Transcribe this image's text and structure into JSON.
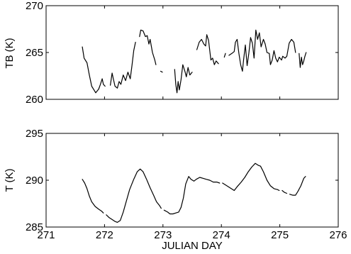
{
  "chart_data": [
    {
      "type": "line",
      "xlabel": "",
      "ylabel": "TB (K)",
      "xlim": [
        271,
        276
      ],
      "ylim": [
        260,
        270
      ],
      "xticks": [
        271,
        272,
        273,
        274,
        275,
        276
      ],
      "yticks": [
        260,
        265,
        270
      ],
      "xtick_labels_shown": false,
      "grid": false,
      "series": [
        {
          "segments": [
            [
              [
                271.62,
                265.6
              ],
              [
                271.65,
                264.4
              ],
              [
                271.7,
                263.9
              ],
              [
                271.74,
                262.6
              ],
              [
                271.78,
                261.4
              ],
              [
                271.82,
                261.0
              ],
              [
                271.85,
                260.7
              ],
              [
                271.9,
                261.1
              ],
              [
                271.93,
                261.6
              ],
              [
                271.96,
                262.2
              ],
              [
                271.98,
                261.6
              ],
              [
                272.01,
                261.4
              ]
            ],
            [
              [
                272.1,
                261.5
              ],
              [
                272.13,
                262.8
              ],
              [
                272.15,
                262.2
              ],
              [
                272.18,
                261.4
              ],
              [
                272.22,
                261.2
              ],
              [
                272.25,
                261.9
              ],
              [
                272.28,
                261.6
              ],
              [
                272.32,
                262.6
              ],
              [
                272.36,
                262.0
              ],
              [
                272.4,
                262.9
              ],
              [
                272.44,
                262.2
              ],
              [
                272.47,
                263.6
              ],
              [
                272.5,
                265.2
              ],
              [
                272.53,
                266.1
              ]
            ],
            [
              [
                272.6,
                266.7
              ],
              [
                272.62,
                267.4
              ],
              [
                272.66,
                267.3
              ],
              [
                272.7,
                266.7
              ],
              [
                272.73,
                266.8
              ],
              [
                272.76,
                265.9
              ],
              [
                272.78,
                266.4
              ],
              [
                272.82,
                265.0
              ],
              [
                272.86,
                264.2
              ],
              [
                272.88,
                263.7
              ]
            ],
            [
              [
                272.96,
                263.0
              ],
              [
                272.99,
                262.9
              ]
            ],
            [
              [
                273.2,
                263.2
              ],
              [
                273.22,
                261.6
              ],
              [
                273.24,
                260.7
              ],
              [
                273.26,
                261.9
              ],
              [
                273.28,
                261.0
              ],
              [
                273.31,
                262.1
              ],
              [
                273.34,
                263.7
              ],
              [
                273.38,
                262.9
              ],
              [
                273.4,
                262.4
              ],
              [
                273.43,
                263.4
              ],
              [
                273.46,
                262.6
              ],
              [
                273.5,
                262.9
              ]
            ],
            [
              [
                273.58,
                265.3
              ],
              [
                273.62,
                266.1
              ],
              [
                273.66,
                266.4
              ],
              [
                273.7,
                265.9
              ],
              [
                273.73,
                265.7
              ],
              [
                273.75,
                266.9
              ],
              [
                273.78,
                266.3
              ],
              [
                273.82,
                264.2
              ],
              [
                273.85,
                264.4
              ],
              [
                273.88,
                263.7
              ],
              [
                273.91,
                264.1
              ],
              [
                273.95,
                263.8
              ]
            ],
            [
              [
                274.05,
                264.5
              ],
              [
                274.07,
                264.9
              ]
            ],
            [
              [
                274.13,
                264.7
              ],
              [
                274.18,
                264.9
              ],
              [
                274.22,
                265.1
              ],
              [
                274.24,
                266.1
              ],
              [
                274.27,
                266.4
              ],
              [
                274.3,
                264.9
              ],
              [
                274.33,
                263.7
              ],
              [
                274.36,
                263.0
              ],
              [
                274.38,
                264.2
              ],
              [
                274.41,
                265.8
              ],
              [
                274.44,
                263.6
              ],
              [
                274.47,
                264.9
              ],
              [
                274.5,
                266.6
              ],
              [
                274.53,
                266.0
              ],
              [
                274.56,
                264.4
              ],
              [
                274.59,
                267.4
              ],
              [
                274.62,
                266.4
              ],
              [
                274.65,
                267.1
              ],
              [
                274.68,
                265.6
              ],
              [
                274.72,
                266.4
              ],
              [
                274.75,
                265.9
              ],
              [
                274.78,
                265.0
              ],
              [
                274.82,
                264.9
              ],
              [
                274.84,
                263.7
              ],
              [
                274.87,
                264.2
              ],
              [
                274.9,
                265.2
              ],
              [
                274.93,
                264.4
              ],
              [
                274.96,
                264.0
              ],
              [
                274.99,
                264.5
              ],
              [
                275.03,
                264.2
              ],
              [
                275.05,
                264.6
              ],
              [
                275.09,
                264.4
              ],
              [
                275.12,
                264.6
              ],
              [
                275.16,
                266.0
              ],
              [
                275.2,
                266.4
              ],
              [
                275.24,
                266.1
              ],
              [
                275.27,
                265.0
              ]
            ],
            [
              [
                275.33,
                264.9
              ],
              [
                275.35,
                263.4
              ],
              [
                275.37,
                264.5
              ],
              [
                275.39,
                263.7
              ],
              [
                275.41,
                264.1
              ],
              [
                275.43,
                264.6
              ],
              [
                275.45,
                265.0
              ]
            ]
          ]
        }
      ]
    },
    {
      "type": "line",
      "xlabel": "JULIAN DAY",
      "ylabel": "T (K)",
      "xlim": [
        271,
        276
      ],
      "ylim": [
        285,
        295
      ],
      "xticks": [
        271,
        272,
        273,
        274,
        275,
        276
      ],
      "yticks": [
        285,
        290,
        295
      ],
      "grid": false,
      "series": [
        {
          "segments": [
            [
              [
                271.62,
                290.1
              ],
              [
                271.66,
                289.7
              ],
              [
                271.7,
                289.1
              ],
              [
                271.74,
                288.3
              ],
              [
                271.78,
                287.7
              ],
              [
                271.84,
                287.2
              ],
              [
                271.9,
                286.9
              ],
              [
                271.95,
                286.7
              ],
              [
                271.98,
                286.5
              ]
            ],
            [
              [
                272.03,
                286.3
              ],
              [
                272.08,
                286.0
              ],
              [
                272.13,
                285.8
              ],
              [
                272.18,
                285.6
              ],
              [
                272.22,
                285.5
              ],
              [
                272.27,
                285.7
              ],
              [
                272.32,
                286.6
              ],
              [
                272.37,
                287.7
              ],
              [
                272.43,
                289.0
              ],
              [
                272.5,
                290.1
              ],
              [
                272.56,
                290.9
              ],
              [
                272.61,
                291.2
              ],
              [
                272.66,
                290.9
              ],
              [
                272.72,
                290.1
              ],
              [
                272.78,
                289.2
              ],
              [
                272.84,
                288.4
              ],
              [
                272.89,
                287.7
              ],
              [
                272.94,
                287.3
              ],
              [
                272.97,
                287.0
              ]
            ],
            [
              [
                273.02,
                286.8
              ],
              [
                273.08,
                286.6
              ],
              [
                273.12,
                286.4
              ],
              [
                273.17,
                286.4
              ],
              [
                273.22,
                286.5
              ],
              [
                273.27,
                286.6
              ],
              [
                273.31,
                287.1
              ],
              [
                273.35,
                288.1
              ],
              [
                273.39,
                289.6
              ],
              [
                273.44,
                290.4
              ],
              [
                273.48,
                290.1
              ],
              [
                273.53,
                289.9
              ],
              [
                273.57,
                290.1
              ],
              [
                273.63,
                290.3
              ],
              [
                273.69,
                290.2
              ],
              [
                273.74,
                290.1
              ],
              [
                273.8,
                290.0
              ],
              [
                273.86,
                289.8
              ],
              [
                273.92,
                289.8
              ],
              [
                273.97,
                289.7
              ]
            ],
            [
              [
                274.02,
                289.7
              ],
              [
                274.07,
                289.5
              ],
              [
                274.12,
                289.3
              ],
              [
                274.17,
                289.1
              ],
              [
                274.22,
                288.9
              ],
              [
                274.27,
                289.3
              ],
              [
                274.34,
                289.8
              ],
              [
                274.4,
                290.3
              ],
              [
                274.46,
                290.9
              ],
              [
                274.52,
                291.4
              ],
              [
                274.58,
                291.8
              ],
              [
                274.63,
                291.6
              ],
              [
                274.67,
                291.5
              ],
              [
                274.72,
                290.9
              ],
              [
                274.78,
                290.0
              ],
              [
                274.84,
                289.4
              ],
              [
                274.9,
                289.1
              ],
              [
                274.96,
                289.0
              ],
              [
                274.99,
                288.9
              ]
            ],
            [
              [
                275.04,
                288.9
              ],
              [
                275.08,
                288.7
              ],
              [
                275.12,
                288.6
              ]
            ],
            [
              [
                275.17,
                288.5
              ],
              [
                275.22,
                288.4
              ],
              [
                275.27,
                288.4
              ],
              [
                275.31,
                288.8
              ],
              [
                275.36,
                289.4
              ],
              [
                275.41,
                290.2
              ],
              [
                275.44,
                290.4
              ]
            ]
          ]
        }
      ]
    }
  ]
}
